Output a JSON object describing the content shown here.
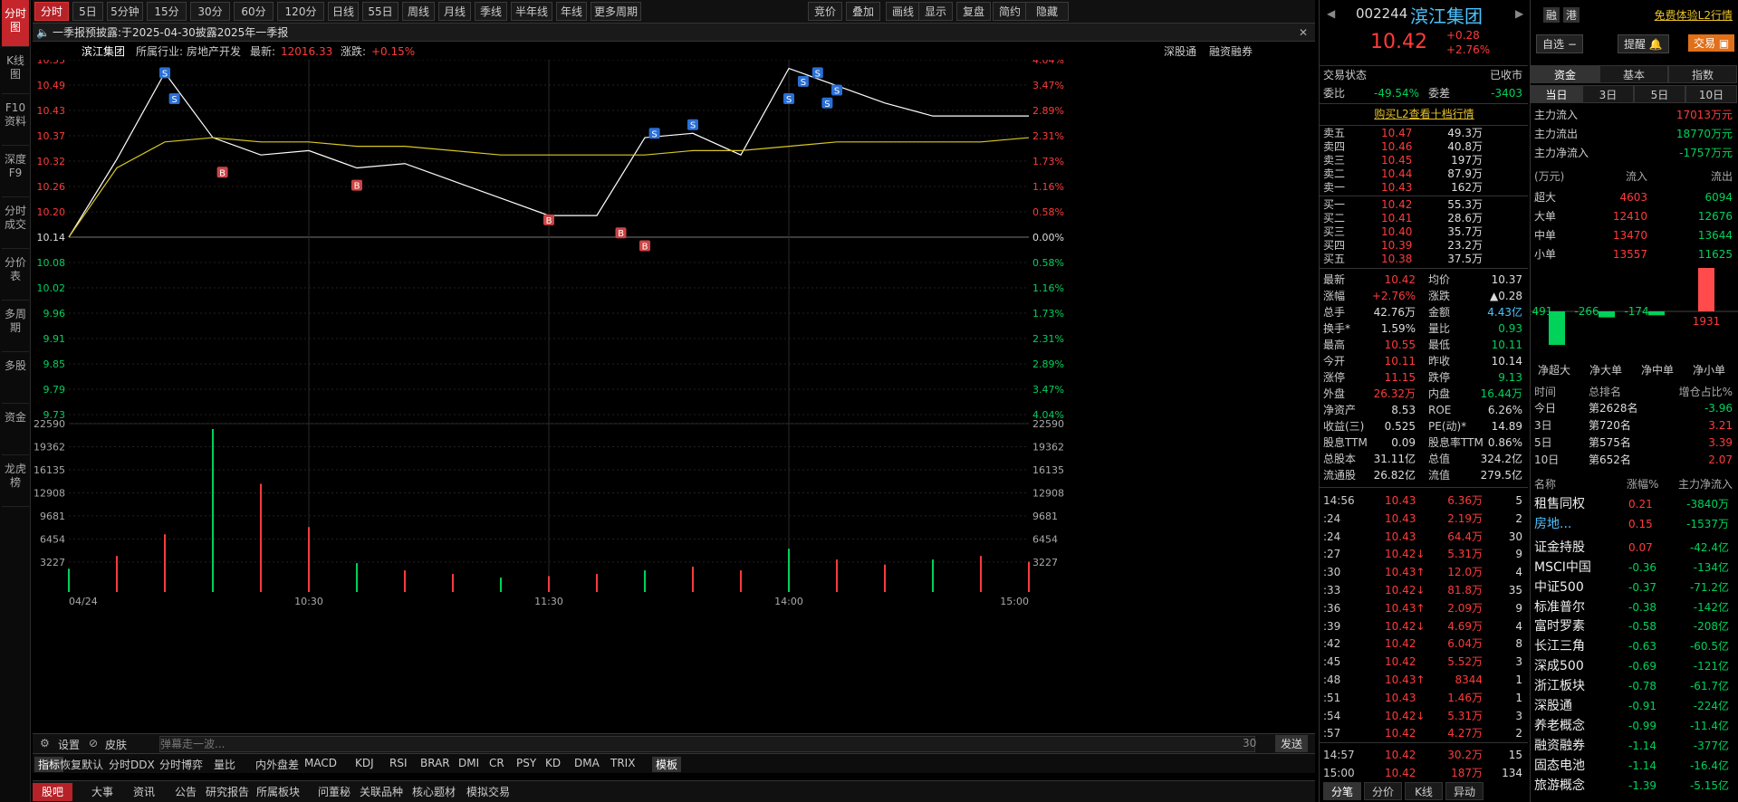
{
  "leftnav": [
    "分时图",
    "K线图",
    "F10资料",
    "深度F9",
    "分时成交",
    "分价表",
    "多周期",
    "多股",
    "资金",
    "龙虎榜"
  ],
  "topbar": {
    "tabs": [
      "分时",
      "5日",
      "5分钟",
      "15分钟",
      "30分钟",
      "60分钟",
      "120分钟",
      "日线",
      "55日线",
      "周线",
      "月线",
      "季线",
      "半年线",
      "年线",
      "更多周期"
    ],
    "right": [
      "竞价",
      "叠加",
      "画线",
      "显示",
      "复盘",
      "简约",
      "隐藏"
    ]
  },
  "notice": {
    "label": "一季报预披露:",
    "text": "于2025-04-30披露2025年一季报"
  },
  "info": {
    "name": "滨江集团",
    "industry_label": "所属行业:",
    "industry": "房地产开发",
    "latest_label": "最新:",
    "latest": "12016.33",
    "chg_label": "涨跌:",
    "chg": "+0.15%",
    "links": [
      "深股通",
      "融资融券"
    ]
  },
  "axis": {
    "price_left": [
      "10.55",
      "10.49",
      "10.43",
      "10.37",
      "10.32",
      "10.26",
      "10.20",
      "10.14",
      "10.08",
      "10.02",
      "9.96",
      "9.91",
      "9.85",
      "9.79",
      "9.73"
    ],
    "pct_right": [
      "4.04%",
      "3.47%",
      "2.89%",
      "2.31%",
      "1.73%",
      "1.16%",
      "0.58%",
      "0.00%",
      "0.58%",
      "1.16%",
      "1.73%",
      "2.31%",
      "2.89%",
      "3.47%",
      "4.04%"
    ],
    "vol": [
      "22590",
      "19362",
      "16135",
      "12908",
      "9681",
      "6454",
      "3227"
    ],
    "time": [
      "04/24",
      "10:30",
      "11:30",
      "14:00",
      "15:00"
    ]
  },
  "chart_data": {
    "type": "line",
    "title": "",
    "x": [
      "09:30",
      "09:35",
      "09:40",
      "09:45",
      "09:50",
      "10:00",
      "10:15",
      "10:30",
      "10:45",
      "11:00",
      "11:15",
      "11:30",
      "13:05",
      "13:15",
      "13:30",
      "13:45",
      "14:00",
      "14:15",
      "14:30",
      "14:45",
      "15:00"
    ],
    "series": [
      {
        "name": "",
        "values": [
          10.14,
          10.32,
          10.52,
          10.37,
          10.33,
          10.34,
          10.3,
          10.31,
          10.27,
          10.23,
          10.19,
          10.19,
          10.37,
          10.38,
          10.33,
          10.53,
          10.49,
          10.45,
          10.42,
          10.42,
          10.42
        ]
      },
      {
        "name": "",
        "values": [
          10.14,
          10.3,
          10.36,
          10.37,
          10.36,
          10.36,
          10.35,
          10.35,
          10.34,
          10.33,
          10.33,
          10.33,
          10.33,
          10.34,
          10.34,
          10.35,
          10.36,
          10.36,
          10.36,
          10.36,
          10.37
        ]
      }
    ],
    "ylim": [
      9.73,
      10.55
    ],
    "volume": [
      3227,
      5000,
      8000,
      22590,
      15000,
      9000,
      4000,
      3000,
      2500,
      2000,
      2200,
      2500,
      3000,
      3500,
      3000,
      6000,
      4500,
      3800,
      4500,
      5000,
      4200
    ]
  },
  "markers": [
    "S",
    "S",
    "B",
    "B",
    "B",
    "B",
    "B",
    "S",
    "S",
    "S",
    "S",
    "S",
    "S",
    "S"
  ],
  "bottomtools": {
    "settings": "设置",
    "skin": "皮肤",
    "comment_placeholder": "弹幕走一波...",
    "count": "30",
    "send": "发送"
  },
  "indicators": [
    "指标",
    "恢复默认",
    "分时DDX",
    "分时博弈",
    "量比",
    "内外盘差",
    "MACD",
    "KDJ",
    "RSI",
    "BRAR",
    "DMI",
    "CR",
    "PSY",
    "KD",
    "DMA",
    "TRIX",
    "模板"
  ],
  "bottomtabs": [
    "股吧",
    "大事",
    "资讯",
    "公告",
    "研究报告",
    "所属板块",
    "问董秘",
    "关联品种",
    "核心题材",
    "模拟交易"
  ],
  "stock": {
    "code": "002244",
    "name": "滨江集团",
    "price": "10.42",
    "chg": "+0.28",
    "pct": "+2.76%"
  },
  "status": {
    "label": "交易状态",
    "value": "已收市",
    "wb_label": "委比",
    "wb": "-49.54%",
    "wc_label": "委差",
    "wc": "-3403",
    "l2": "购买L2查看十档行情"
  },
  "asks": [
    [
      "卖五",
      "10.47",
      "49.3万"
    ],
    [
      "卖四",
      "10.46",
      "40.8万"
    ],
    [
      "卖三",
      "10.45",
      "197万"
    ],
    [
      "卖二",
      "10.44",
      "87.9万"
    ],
    [
      "卖一",
      "10.43",
      "162万"
    ]
  ],
  "bids": [
    [
      "买一",
      "10.42",
      "55.3万"
    ],
    [
      "买二",
      "10.41",
      "28.6万"
    ],
    [
      "买三",
      "10.40",
      "35.7万"
    ],
    [
      "买四",
      "10.39",
      "23.2万"
    ],
    [
      "买五",
      "10.38",
      "37.5万"
    ]
  ],
  "stats": [
    [
      "最新",
      "10.42",
      "均价",
      "10.37"
    ],
    [
      "涨幅",
      "+2.76%",
      "涨跌",
      "▲0.28"
    ],
    [
      "总手",
      "42.76万",
      "金额",
      "4.43亿"
    ],
    [
      "换手*",
      "1.59%",
      "量比",
      "0.93"
    ],
    [
      "最高",
      "10.55",
      "最低",
      "10.11"
    ],
    [
      "今开",
      "10.11",
      "昨收",
      "10.14"
    ],
    [
      "涨停",
      "11.15",
      "跌停",
      "9.13"
    ],
    [
      "外盘",
      "26.32万",
      "内盘",
      "16.44万"
    ],
    [
      "净资产",
      "8.53",
      "ROE",
      "6.26%"
    ],
    [
      "收益(三)",
      "0.525",
      "PE(动)*",
      "14.89"
    ],
    [
      "股息TTM",
      "0.09",
      "股息率TTM",
      "0.86%"
    ],
    [
      "总股本",
      "31.11亿",
      "总值",
      "324.2亿"
    ],
    [
      "流通股",
      "26.82亿",
      "流值",
      "279.5亿"
    ]
  ],
  "ticks": [
    [
      "14:56",
      "10.43",
      "6.36万",
      "5"
    ],
    [
      ":24",
      "10.43",
      "2.19万",
      "2"
    ],
    [
      ":24",
      "10.43",
      "64.4万",
      "30"
    ],
    [
      ":27",
      "10.42↓",
      "5.31万",
      "9"
    ],
    [
      ":30",
      "10.43↑",
      "12.0万",
      "4"
    ],
    [
      ":33",
      "10.42↓",
      "81.8万",
      "35"
    ],
    [
      ":36",
      "10.43↑",
      "2.09万",
      "9"
    ],
    [
      ":39",
      "10.42↓",
      "4.69万",
      "4"
    ],
    [
      ":42",
      "10.42",
      "6.04万",
      "8"
    ],
    [
      ":45",
      "10.42",
      "5.52万",
      "3"
    ],
    [
      ":48",
      "10.43↑",
      "8344",
      "1"
    ],
    [
      ":51",
      "10.43",
      "1.46万",
      "1"
    ],
    [
      ":54",
      "10.42↓",
      "5.31万",
      "3"
    ],
    [
      ":57",
      "10.42",
      "4.27万",
      "2"
    ],
    [
      "14:57",
      "10.42",
      "30.2万",
      "15"
    ],
    [
      "15:00",
      "10.42",
      "187万",
      "134"
    ]
  ],
  "midtabs": [
    "分笔",
    "分价",
    "K线",
    "异动"
  ],
  "rightheader": {
    "free": "免费体验L2行情",
    "rong": "融",
    "gang": "港",
    "zixuan": "自选",
    "tixing": "提醒",
    "trade": "交易"
  },
  "fundtabs": [
    "资金",
    "基本",
    "指数"
  ],
  "periodtabs": [
    "当日",
    "3日",
    "5日",
    "10日"
  ],
  "mainflow": [
    [
      "主力流入",
      "17013万元"
    ],
    [
      "主力流出",
      "18770万元"
    ],
    [
      "主力净流入",
      "-1757万元"
    ]
  ],
  "flowhead": [
    "(万元)",
    "流入",
    "流出"
  ],
  "flows": [
    [
      "超大",
      "4603",
      "6094"
    ],
    [
      "大单",
      "12410",
      "12676"
    ],
    [
      "中单",
      "13470",
      "13644"
    ],
    [
      "小单",
      "13557",
      "11625"
    ]
  ],
  "bars": {
    "values": [
      -1491,
      -266,
      -174,
      1931
    ],
    "labels": [
      "净超大",
      "净大单",
      "净中单",
      "净小单"
    ]
  },
  "rank_head": [
    "时间",
    "总排名",
    "增仓占比%"
  ],
  "ranks": [
    [
      "今日",
      "第2628名",
      "-3.96"
    ],
    [
      "3日",
      "第720名",
      "3.21"
    ],
    [
      "5日",
      "第575名",
      "3.39"
    ],
    [
      "10日",
      "第652名",
      "2.07"
    ]
  ],
  "sector_head": [
    "名称",
    "涨幅%",
    "主力净流入"
  ],
  "sectors": [
    [
      "租售同权",
      "0.21",
      "-3840万"
    ],
    [
      "房地...",
      "0.15",
      "-1537万"
    ],
    [
      "证金持股",
      "0.07",
      "-42.4亿"
    ],
    [
      "MSCI中国",
      "-0.36",
      "-134亿"
    ],
    [
      "中证500",
      "-0.37",
      "-71.2亿"
    ],
    [
      "标准普尔",
      "-0.38",
      "-142亿"
    ],
    [
      "富时罗素",
      "-0.58",
      "-208亿"
    ],
    [
      "长江三角",
      "-0.63",
      "-60.5亿"
    ],
    [
      "深成500",
      "-0.69",
      "-121亿"
    ],
    [
      "浙江板块",
      "-0.78",
      "-61.7亿"
    ],
    [
      "深股通",
      "-0.91",
      "-224亿"
    ],
    [
      "养老概念",
      "-0.99",
      "-11.4亿"
    ],
    [
      "融资融券",
      "-1.14",
      "-377亿"
    ],
    [
      "固态电池",
      "-1.14",
      "-16.4亿"
    ],
    [
      "旅游概念",
      "-1.39",
      "-5.15亿"
    ]
  ]
}
